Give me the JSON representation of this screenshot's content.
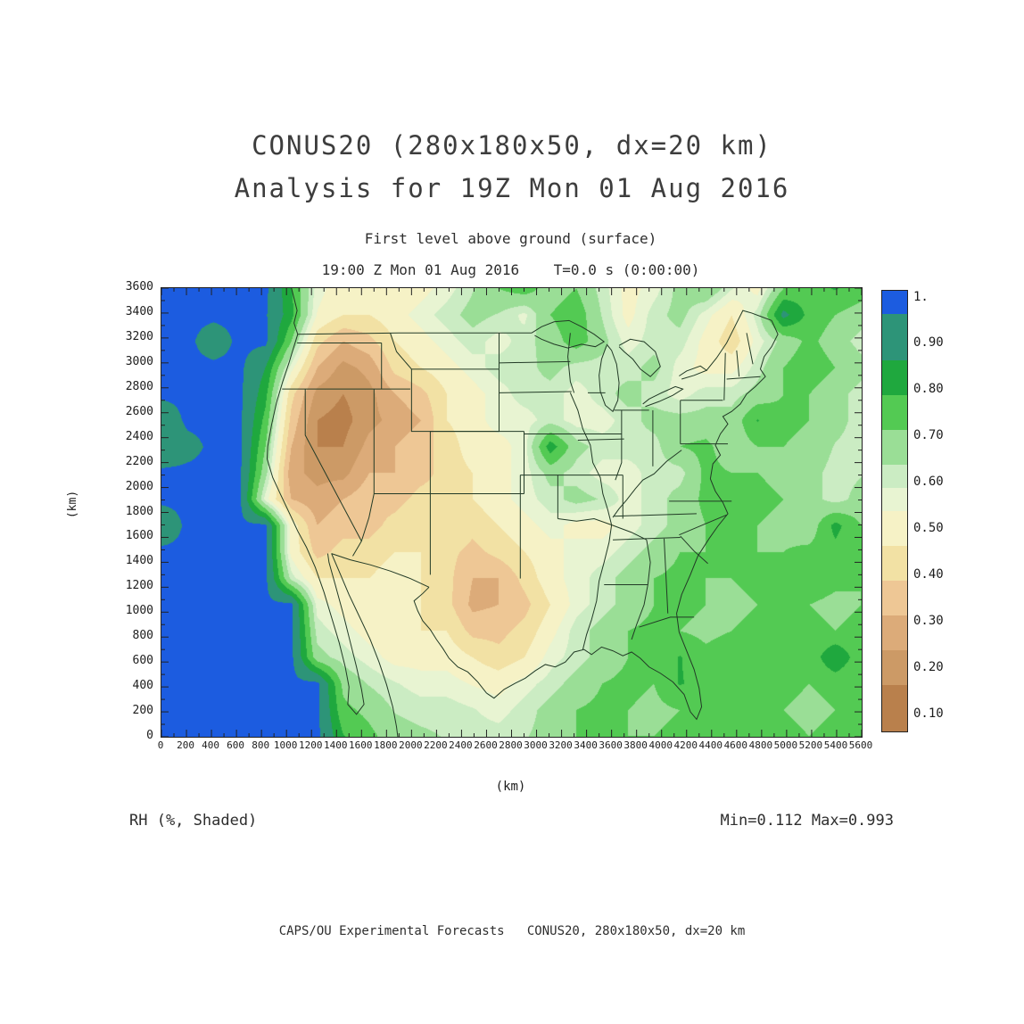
{
  "header": {
    "title_line1": "CONUS20 (280x180x50, dx=20 km)",
    "title_line2": "Analysis for 19Z Mon 01 Aug 2016",
    "subtitle": "First level above ground (surface)",
    "time_line": "19:00 Z Mon 01 Aug 2016    T=0.0 s (0:00:00)"
  },
  "annotations": {
    "bottom_left": "RH (%, Shaded)",
    "bottom_right": "Min=0.112 Max=0.993",
    "credit": "CAPS/OU Experimental Forecasts   CONUS20, 280x180x50, dx=20 km"
  },
  "chart_data": {
    "type": "heatmap",
    "title": "CONUS20 (280x180x50, dx=20 km) — Analysis for 19Z Mon 01 Aug 2016",
    "variable": "RH (%, Shaded)",
    "level": "First level above ground (surface)",
    "valid_time": "19:00 Z Mon 01 Aug 2016",
    "forecast_time": "T=0.0 s (0:00:00)",
    "min": 0.112,
    "max": 0.993,
    "axes": {
      "xlabel": "(km)",
      "ylabel": "(km)",
      "x_range": [
        0,
        5600
      ],
      "y_range": [
        0,
        3600
      ],
      "x_tick_step": 200,
      "y_tick_step": 200,
      "minor_tick_step": 100
    },
    "grid": {
      "description": "Relative humidity (fraction 0-1), coarse 28x28km-cell estimate; rows north-to-south, cols west-to-east, 200 km cells",
      "cols": 28,
      "rows": 18,
      "order": "north_to_south",
      "values": [
        [
          0.97,
          0.97,
          0.97,
          0.97,
          0.97,
          0.78,
          0.55,
          0.48,
          0.45,
          0.45,
          0.5,
          0.55,
          0.62,
          0.7,
          0.74,
          0.66,
          0.7,
          0.6,
          0.5,
          0.55,
          0.65,
          0.7,
          0.58,
          0.5,
          0.7,
          0.75,
          0.78,
          0.74
        ],
        [
          0.97,
          0.97,
          0.97,
          0.97,
          0.96,
          0.8,
          0.52,
          0.45,
          0.45,
          0.5,
          0.55,
          0.6,
          0.65,
          0.62,
          0.56,
          0.7,
          0.75,
          0.62,
          0.5,
          0.6,
          0.65,
          0.55,
          0.45,
          0.6,
          0.88,
          0.75,
          0.7,
          0.66
        ],
        [
          0.97,
          0.97,
          0.9,
          0.97,
          0.97,
          0.7,
          0.4,
          0.3,
          0.35,
          0.45,
          0.5,
          0.55,
          0.6,
          0.55,
          0.6,
          0.66,
          0.74,
          0.65,
          0.55,
          0.6,
          0.6,
          0.5,
          0.4,
          0.55,
          0.65,
          0.72,
          0.66,
          0.6
        ],
        [
          0.97,
          0.97,
          0.97,
          0.97,
          0.85,
          0.55,
          0.3,
          0.2,
          0.25,
          0.4,
          0.45,
          0.5,
          0.55,
          0.6,
          0.6,
          0.65,
          0.6,
          0.6,
          0.6,
          0.65,
          0.55,
          0.5,
          0.5,
          0.6,
          0.7,
          0.75,
          0.7,
          0.65
        ],
        [
          0.97,
          0.97,
          0.97,
          0.97,
          0.8,
          0.4,
          0.2,
          0.15,
          0.2,
          0.3,
          0.35,
          0.45,
          0.5,
          0.55,
          0.6,
          0.6,
          0.55,
          0.6,
          0.65,
          0.6,
          0.55,
          0.6,
          0.6,
          0.65,
          0.7,
          0.7,
          0.65,
          0.6
        ],
        [
          0.88,
          0.97,
          0.97,
          0.97,
          0.75,
          0.35,
          0.15,
          0.12,
          0.2,
          0.25,
          0.3,
          0.45,
          0.5,
          0.55,
          0.55,
          0.6,
          0.55,
          0.55,
          0.6,
          0.65,
          0.65,
          0.65,
          0.65,
          0.78,
          0.72,
          0.7,
          0.65,
          0.6
        ],
        [
          0.86,
          0.92,
          0.97,
          0.97,
          0.7,
          0.3,
          0.15,
          0.15,
          0.25,
          0.3,
          0.35,
          0.4,
          0.5,
          0.5,
          0.55,
          0.82,
          0.65,
          0.6,
          0.6,
          0.6,
          0.7,
          0.72,
          0.65,
          0.7,
          0.7,
          0.68,
          0.62,
          0.6
        ],
        [
          0.97,
          0.97,
          0.97,
          0.97,
          0.65,
          0.25,
          0.2,
          0.2,
          0.3,
          0.3,
          0.35,
          0.4,
          0.45,
          0.5,
          0.55,
          0.65,
          0.6,
          0.55,
          0.55,
          0.6,
          0.6,
          0.72,
          0.7,
          0.7,
          0.68,
          0.65,
          0.6,
          0.62
        ],
        [
          0.97,
          0.97,
          0.97,
          0.97,
          0.55,
          0.3,
          0.25,
          0.3,
          0.35,
          0.35,
          0.4,
          0.4,
          0.45,
          0.5,
          0.55,
          0.6,
          0.65,
          0.62,
          0.55,
          0.6,
          0.65,
          0.72,
          0.7,
          0.72,
          0.7,
          0.65,
          0.6,
          0.65
        ],
        [
          0.88,
          0.97,
          0.97,
          0.97,
          0.97,
          0.5,
          0.3,
          0.35,
          0.35,
          0.4,
          0.45,
          0.45,
          0.4,
          0.45,
          0.5,
          0.55,
          0.5,
          0.5,
          0.55,
          0.6,
          0.65,
          0.7,
          0.7,
          0.7,
          0.68,
          0.65,
          0.8,
          0.7
        ],
        [
          0.97,
          0.97,
          0.97,
          0.97,
          0.97,
          0.5,
          0.35,
          0.4,
          0.4,
          0.45,
          0.45,
          0.4,
          0.35,
          0.4,
          0.45,
          0.5,
          0.55,
          0.55,
          0.6,
          0.65,
          0.7,
          0.7,
          0.72,
          0.7,
          0.7,
          0.72,
          0.75,
          0.72
        ],
        [
          0.97,
          0.97,
          0.97,
          0.97,
          0.97,
          0.6,
          0.45,
          0.45,
          0.45,
          0.5,
          0.45,
          0.4,
          0.3,
          0.3,
          0.4,
          0.5,
          0.55,
          0.6,
          0.65,
          0.7,
          0.72,
          0.7,
          0.7,
          0.72,
          0.75,
          0.75,
          0.72,
          0.7
        ],
        [
          0.97,
          0.97,
          0.97,
          0.97,
          0.97,
          0.97,
          0.55,
          0.5,
          0.45,
          0.5,
          0.45,
          0.4,
          0.28,
          0.3,
          0.35,
          0.45,
          0.55,
          0.6,
          0.65,
          0.7,
          0.72,
          0.7,
          0.68,
          0.7,
          0.72,
          0.7,
          0.68,
          0.7
        ],
        [
          0.97,
          0.97,
          0.97,
          0.97,
          0.97,
          0.97,
          0.6,
          0.55,
          0.5,
          0.5,
          0.45,
          0.45,
          0.35,
          0.35,
          0.4,
          0.5,
          0.6,
          0.65,
          0.7,
          0.72,
          0.7,
          0.68,
          0.7,
          0.72,
          0.7,
          0.72,
          0.7,
          0.72
        ],
        [
          0.97,
          0.97,
          0.97,
          0.97,
          0.97,
          0.97,
          0.65,
          0.6,
          0.55,
          0.5,
          0.5,
          0.5,
          0.45,
          0.4,
          0.45,
          0.55,
          0.6,
          0.65,
          0.7,
          0.72,
          0.78,
          0.72,
          0.75,
          0.72,
          0.7,
          0.72,
          0.85,
          0.72
        ],
        [
          0.97,
          0.97,
          0.97,
          0.97,
          0.97,
          0.97,
          0.97,
          0.68,
          0.62,
          0.58,
          0.55,
          0.55,
          0.52,
          0.5,
          0.55,
          0.6,
          0.65,
          0.7,
          0.72,
          0.7,
          0.78,
          0.75,
          0.72,
          0.75,
          0.72,
          0.7,
          0.72,
          0.7
        ],
        [
          0.97,
          0.97,
          0.97,
          0.97,
          0.97,
          0.97,
          0.97,
          0.72,
          0.68,
          0.62,
          0.6,
          0.6,
          0.58,
          0.55,
          0.6,
          0.65,
          0.7,
          0.72,
          0.7,
          0.68,
          0.7,
          0.72,
          0.7,
          0.72,
          0.7,
          0.68,
          0.7,
          0.72
        ],
        [
          0.97,
          0.97,
          0.97,
          0.97,
          0.97,
          0.97,
          0.97,
          0.78,
          0.72,
          0.66,
          0.64,
          0.62,
          0.6,
          0.6,
          0.62,
          0.65,
          0.7,
          0.72,
          0.7,
          0.7,
          0.72,
          0.7,
          0.72,
          0.7,
          0.72,
          0.7,
          0.72,
          0.7
        ]
      ]
    },
    "colormap": {
      "range": [
        0.05,
        1.0
      ],
      "stops": [
        {
          "max": 0.15,
          "color": "#b9804c"
        },
        {
          "max": 0.225,
          "color": "#cc9a66"
        },
        {
          "max": 0.3,
          "color": "#dcab79"
        },
        {
          "max": 0.375,
          "color": "#eec795"
        },
        {
          "max": 0.45,
          "color": "#f2e1a4"
        },
        {
          "max": 0.525,
          "color": "#f6f2c6"
        },
        {
          "max": 0.575,
          "color": "#e8f4d2"
        },
        {
          "max": 0.625,
          "color": "#cbecc3"
        },
        {
          "max": 0.7,
          "color": "#9ade96"
        },
        {
          "max": 0.775,
          "color": "#53ca53"
        },
        {
          "max": 0.85,
          "color": "#1fa83e"
        },
        {
          "max": 0.95,
          "color": "#2d9478"
        },
        {
          "max": 1.001,
          "color": "#1c5ce0"
        }
      ]
    },
    "colorbar_labels": [
      {
        "value": 1.0,
        "text": "1."
      },
      {
        "value": 0.9,
        "text": "0.90"
      },
      {
        "value": 0.8,
        "text": "0.80"
      },
      {
        "value": 0.7,
        "text": "0.70"
      },
      {
        "value": 0.6,
        "text": "0.60"
      },
      {
        "value": 0.5,
        "text": "0.50"
      },
      {
        "value": 0.4,
        "text": "0.40"
      },
      {
        "value": 0.3,
        "text": "0.30"
      },
      {
        "value": 0.2,
        "text": "0.20"
      },
      {
        "value": 0.1,
        "text": "0.10"
      }
    ]
  }
}
